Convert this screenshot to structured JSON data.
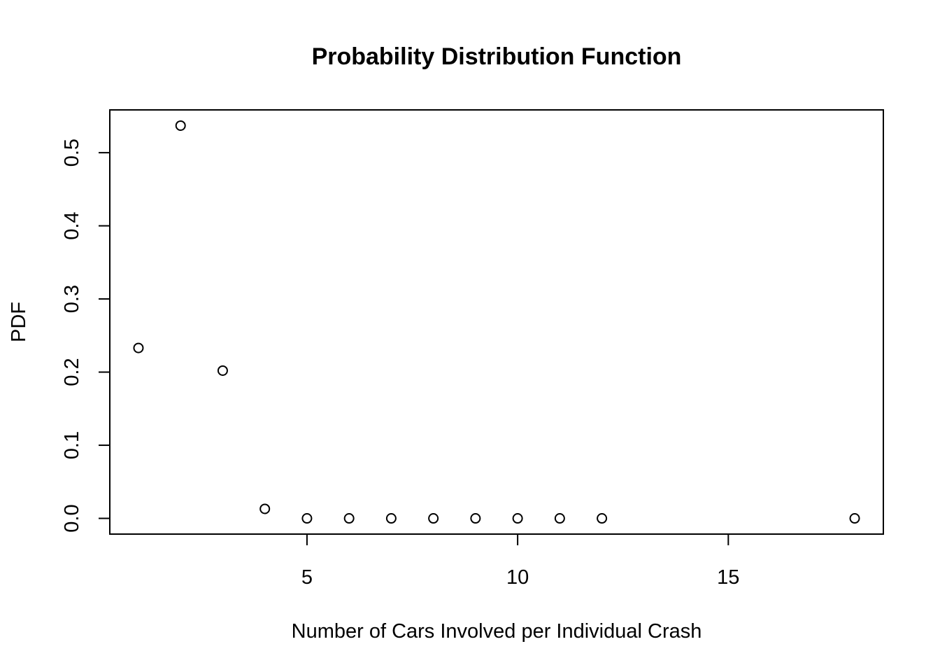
{
  "chart_data": {
    "type": "scatter",
    "title": "Probability Distribution Function",
    "xlabel": "Number of Cars Involved per Individual Crash",
    "ylabel": "PDF",
    "xlim": [
      0.32,
      18.68
    ],
    "ylim": [
      -0.0215,
      0.5585
    ],
    "x_ticks": [
      5,
      10,
      15
    ],
    "y_ticks": [
      0.0,
      0.1,
      0.2,
      0.3,
      0.4,
      0.5
    ],
    "y_tick_labels": [
      "0.0",
      "0.1",
      "0.2",
      "0.3",
      "0.4",
      "0.5"
    ],
    "grid": false,
    "marker": "open-circle",
    "series": [
      {
        "x": [
          1,
          2,
          3,
          4,
          5,
          6,
          7,
          8,
          9,
          10,
          11,
          12,
          18
        ],
        "y": [
          0.233,
          0.537,
          0.202,
          0.013,
          0.0,
          0.0,
          0.0,
          0.0,
          0.0,
          0.0,
          0.0,
          0.0,
          0.0
        ]
      }
    ]
  }
}
